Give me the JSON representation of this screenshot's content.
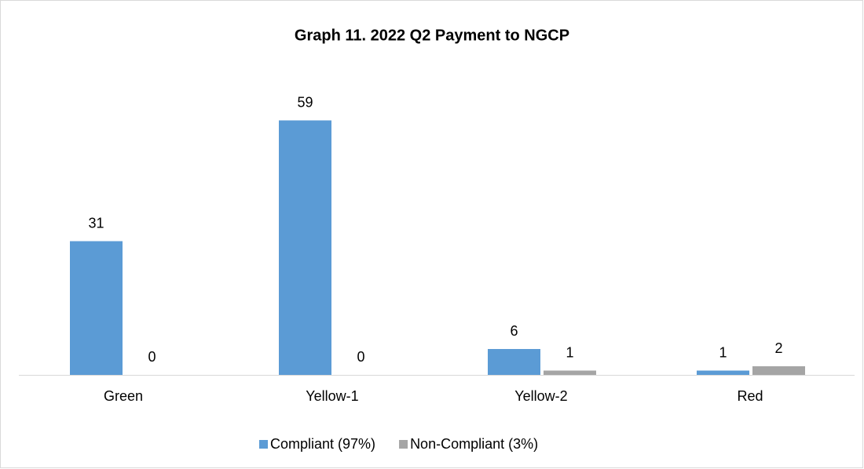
{
  "chart_data": {
    "type": "bar",
    "title": "Graph 11. 2022 Q2 Payment to NGCP",
    "categories": [
      "Green",
      "Yellow-1",
      "Yellow-2",
      "Red"
    ],
    "series": [
      {
        "name": "Compliant (97%)",
        "color": "#5b9bd5",
        "values": [
          31,
          59,
          6,
          1
        ]
      },
      {
        "name": "Non-Compliant (3%)",
        "color": "#a5a5a5",
        "values": [
          0,
          0,
          1,
          2
        ]
      }
    ]
  }
}
